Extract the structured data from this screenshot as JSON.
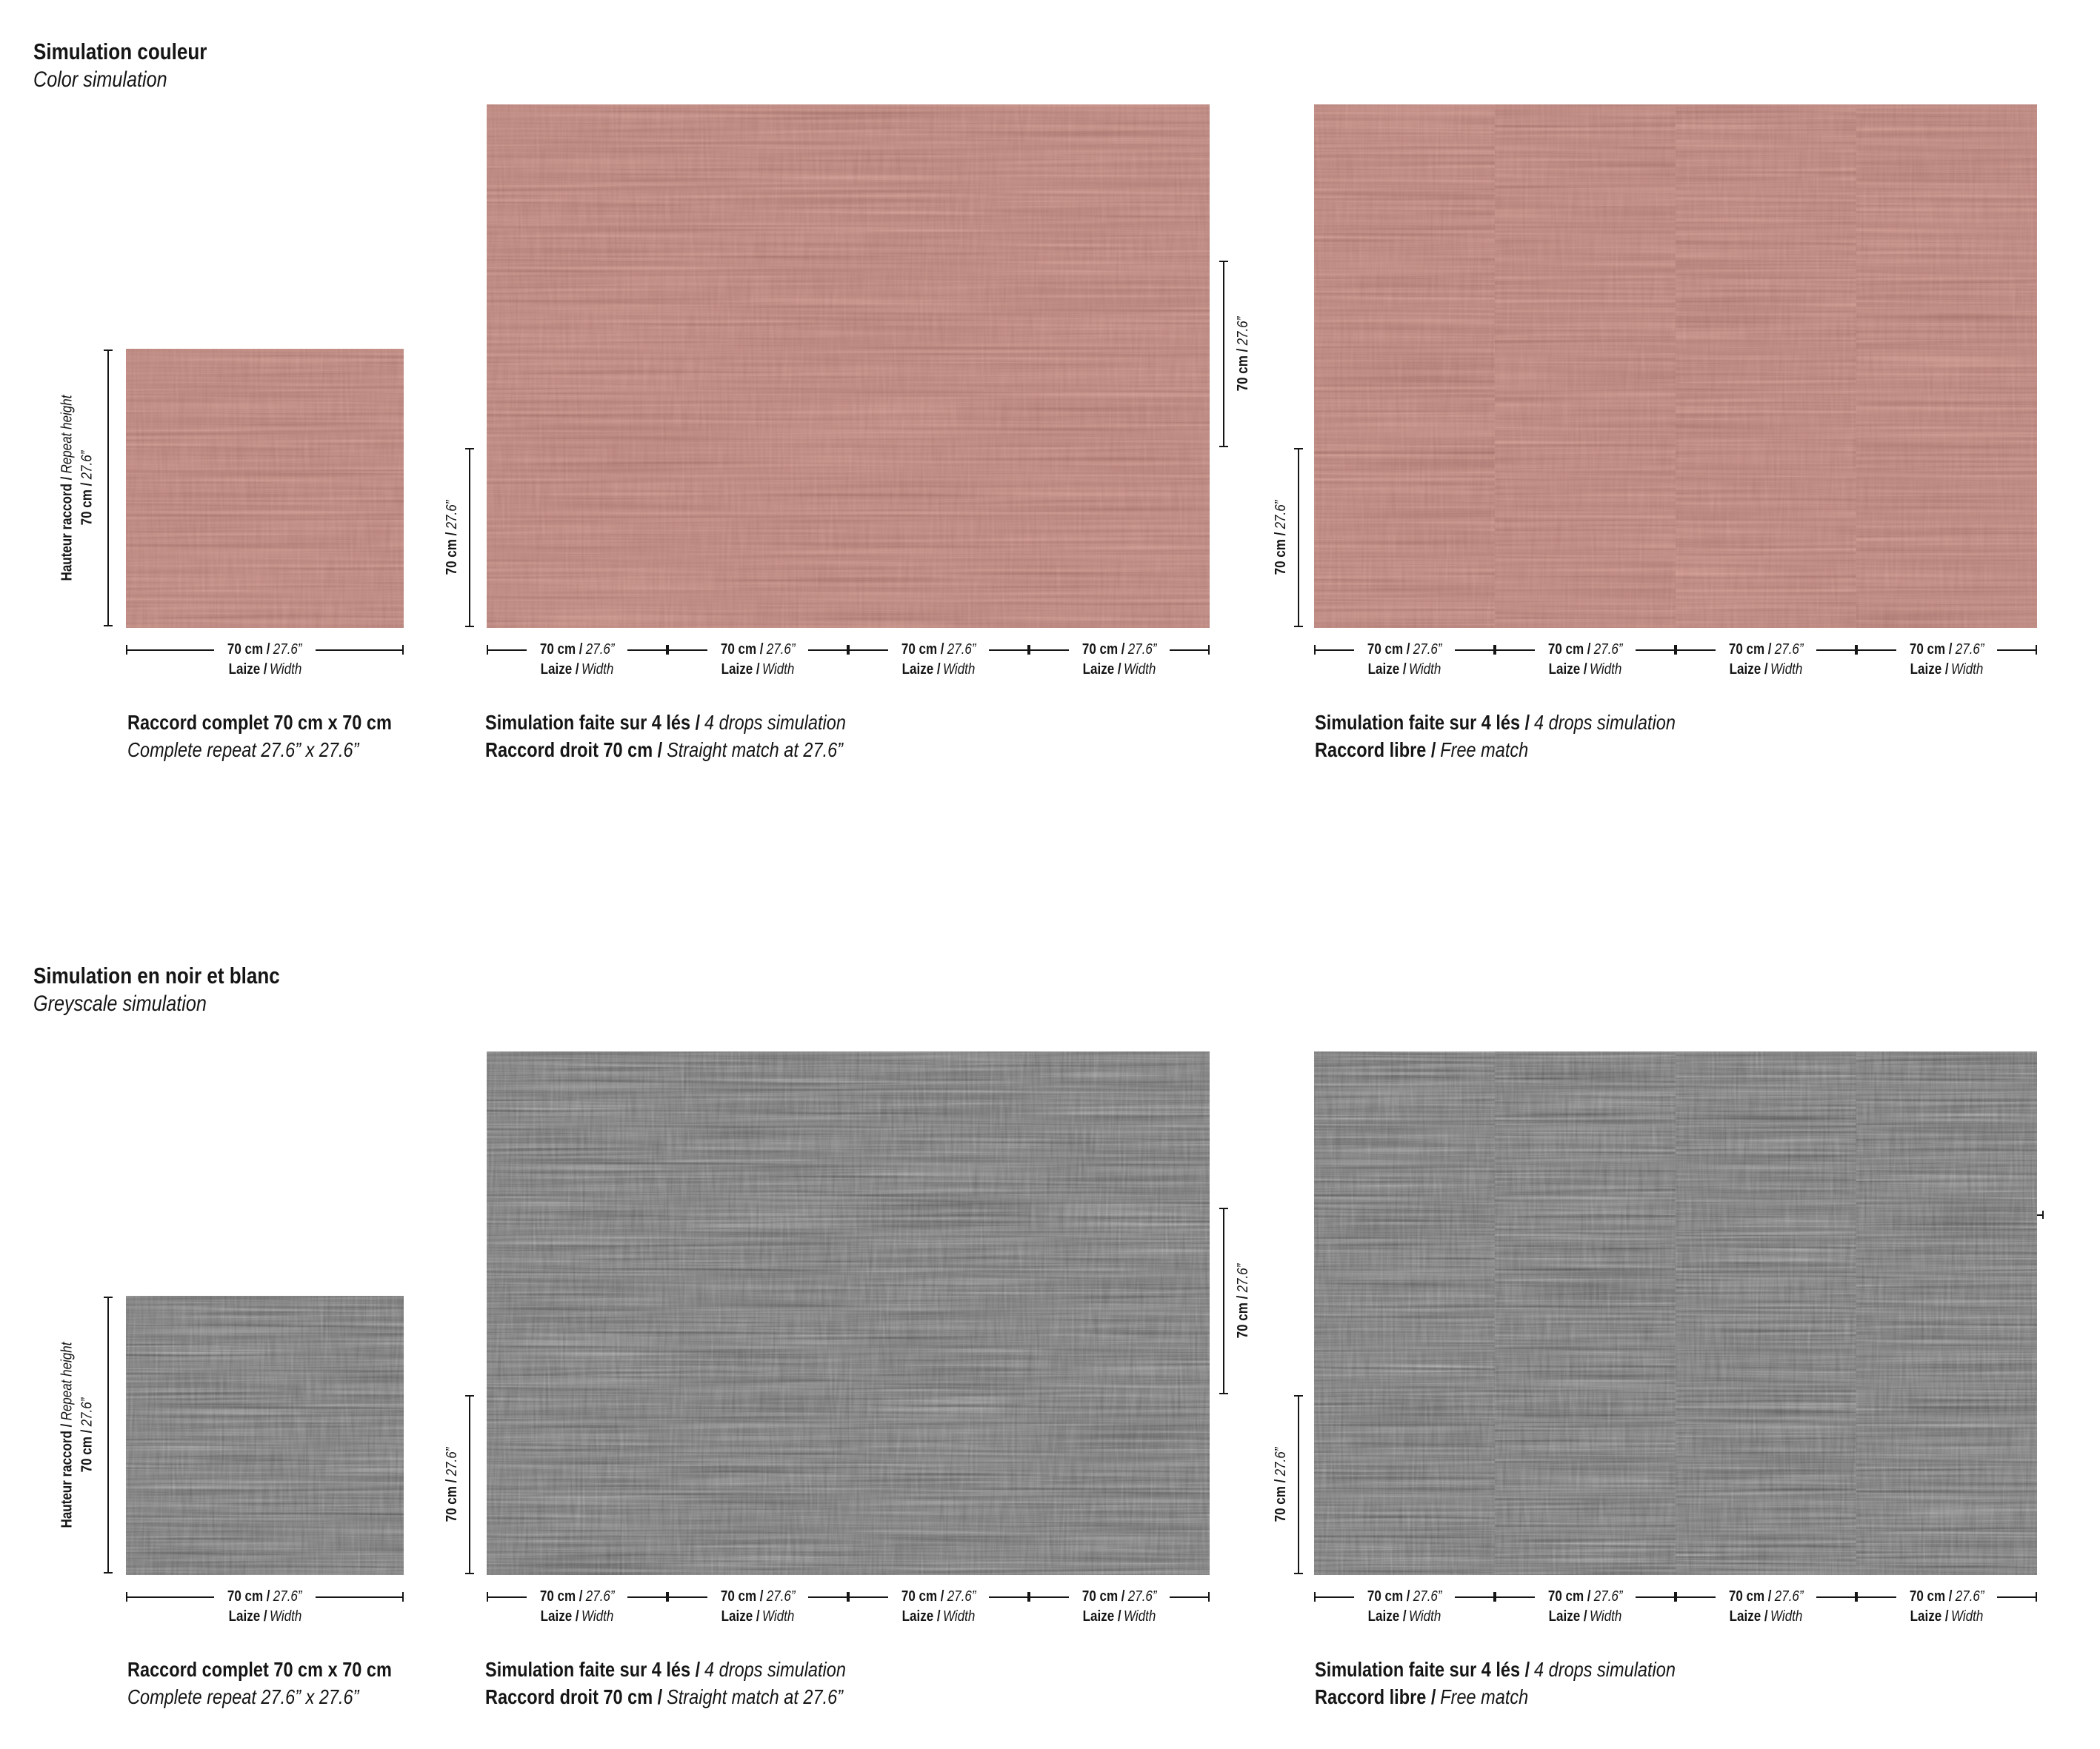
{
  "page": {
    "background": "#ffffff",
    "text_color": "#151515"
  },
  "labels": {
    "width_dim_bold": "70 cm /",
    "width_dim_italic": "27.6”",
    "laize_bold": "Laize /",
    "laize_italic": "Width",
    "repeat_height_bold": "Hauteur raccord /",
    "repeat_height_italic": "Repeat height",
    "height_dim_bold": "70 cm /",
    "height_dim_italic": "27.6”"
  },
  "color_section": {
    "title_fr": "Simulation couleur",
    "title_en": "Color simulation",
    "swatch": {
      "caption_fr": "Raccord complet 70 cm x 70 cm",
      "caption_en": "Complete repeat 27.6” x 27.6”"
    },
    "straight": {
      "caption1_fr": "Simulation faite sur 4 lés /",
      "caption1_en": "4 drops simulation",
      "caption2_fr": "Raccord droit 70 cm /",
      "caption2_en": "Straight match at 27.6”"
    },
    "free": {
      "caption1_fr": "Simulation faite sur 4 lés /",
      "caption1_en": "4 drops simulation",
      "caption2_fr": "Raccord libre /",
      "caption2_en": "Free match"
    },
    "fabric": {
      "base": "#c2908a",
      "light": "#dcb3a8",
      "dark": "#a3736e"
    }
  },
  "greyscale_section": {
    "title_fr": "Simulation en noir et blanc",
    "title_en": "Greyscale simulation",
    "swatch": {
      "caption_fr": "Raccord complet 70 cm x 70 cm",
      "caption_en": "Complete repeat 27.6” x 27.6”"
    },
    "straight": {
      "caption1_fr": "Simulation faite sur 4 lés /",
      "caption1_en": "4 drops simulation",
      "caption2_fr": "Raccord droit 70 cm /",
      "caption2_en": "Straight match at 27.6”"
    },
    "free": {
      "caption1_fr": "Simulation faite sur 4 lés /",
      "caption1_en": "4 drops simulation",
      "caption2_fr": "Raccord libre /",
      "caption2_en": "Free match"
    },
    "fabric": {
      "base": "#8b8b8b",
      "light": "#c8c8c8",
      "dark": "#3f3f3f"
    }
  }
}
